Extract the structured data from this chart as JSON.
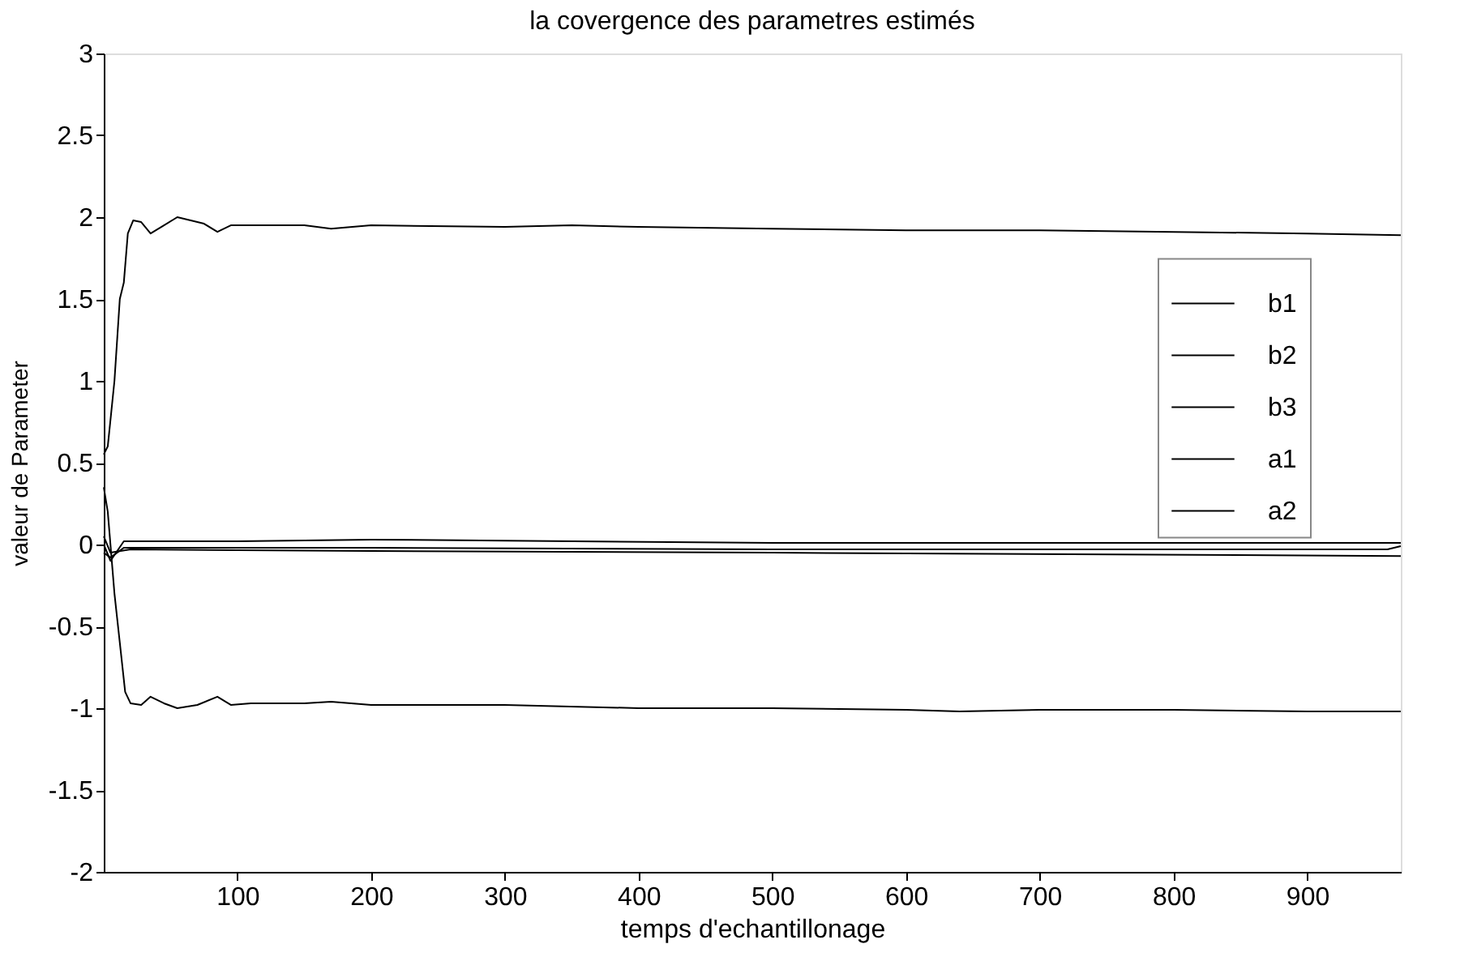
{
  "chart_data": {
    "type": "line",
    "title": "la covergence des parametres estimés",
    "xlabel": "temps d'echantillonage",
    "ylabel": "valeur de Parameter",
    "xlim": [
      0,
      970
    ],
    "xticks": [
      100,
      200,
      300,
      400,
      500,
      600,
      700,
      800,
      900
    ],
    "ylim": [
      -2,
      3
    ],
    "yticks": [
      -2,
      -1.5,
      -1,
      -0.5,
      0,
      0.5,
      1,
      1.5,
      2,
      2.5,
      3
    ],
    "grid": false,
    "legend": "right",
    "line_style": "solid",
    "marker": "none",
    "series": [
      {
        "name": "b1",
        "color": "#000000",
        "x": [
          0,
          5,
          15,
          100,
          200,
          500,
          970
        ],
        "values": [
          0,
          -0.1,
          0.02,
          0.02,
          0.03,
          0.01,
          0.01
        ]
      },
      {
        "name": "b2",
        "color": "#000000",
        "x": [
          0,
          5,
          15,
          200,
          500,
          960,
          970
        ],
        "values": [
          -0.05,
          -0.08,
          -0.02,
          -0.02,
          -0.03,
          -0.03,
          -0.01
        ]
      },
      {
        "name": "b3",
        "color": "#000000",
        "x": [
          0,
          5,
          20,
          200,
          500,
          970
        ],
        "values": [
          0.05,
          -0.05,
          -0.03,
          -0.04,
          -0.05,
          -0.07
        ]
      },
      {
        "name": "a1",
        "color": "#000000",
        "x": [
          0,
          3,
          8,
          12,
          15,
          18,
          22,
          28,
          35,
          45,
          55,
          65,
          75,
          85,
          95,
          110,
          150,
          170,
          200,
          300,
          350,
          400,
          500,
          600,
          700,
          800,
          900,
          970
        ],
        "values": [
          0.55,
          0.6,
          1.0,
          1.5,
          1.6,
          1.9,
          1.98,
          1.97,
          1.9,
          1.95,
          2.0,
          1.98,
          1.96,
          1.91,
          1.95,
          1.95,
          1.95,
          1.93,
          1.95,
          1.94,
          1.95,
          1.94,
          1.93,
          1.92,
          1.92,
          1.91,
          1.9,
          1.89
        ]
      },
      {
        "name": "a2",
        "color": "#000000",
        "x": [
          0,
          3,
          8,
          12,
          16,
          20,
          28,
          35,
          45,
          55,
          70,
          85,
          95,
          110,
          150,
          170,
          200,
          300,
          400,
          500,
          600,
          640,
          700,
          800,
          900,
          970
        ],
        "values": [
          0.35,
          0.2,
          -0.3,
          -0.6,
          -0.9,
          -0.97,
          -0.98,
          -0.93,
          -0.97,
          -1.0,
          -0.98,
          -0.93,
          -0.98,
          -0.97,
          -0.97,
          -0.96,
          -0.98,
          -0.98,
          -1.0,
          -1.0,
          -1.01,
          -1.02,
          -1.01,
          -1.01,
          -1.02,
          -1.02
        ]
      }
    ]
  }
}
